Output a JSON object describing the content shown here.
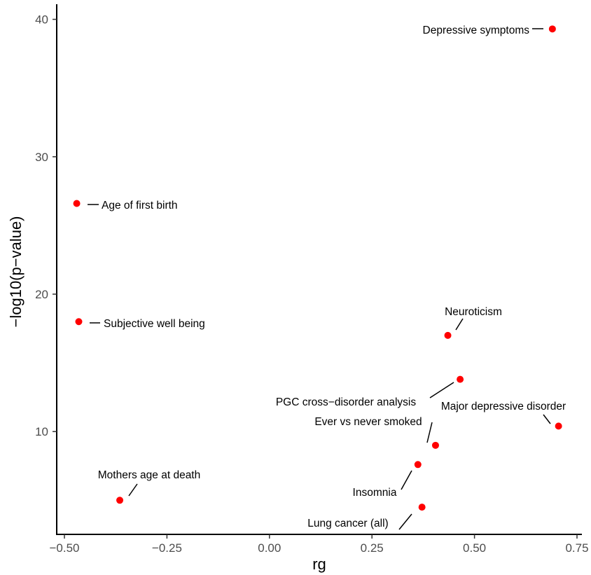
{
  "chart_data": {
    "type": "scatter",
    "title": "",
    "xlabel": "rg",
    "ylabel": "−log10(p−value)",
    "xlim": [
      -0.5,
      0.75
    ],
    "ylim": [
      0,
      40
    ],
    "xticks": [
      -0.5,
      -0.25,
      0.0,
      0.25,
      0.5,
      0.75
    ],
    "xtick_labels": [
      "−0.50",
      "−0.25",
      "0.00",
      "0.25",
      "0.50",
      "0.75"
    ],
    "yticks": [
      10,
      20,
      30,
      40
    ],
    "ytick_labels": [
      "10",
      "20",
      "30",
      "40"
    ],
    "grid": false,
    "point_color": "#ff0000",
    "points": [
      {
        "label": "Depressive symptoms",
        "x": 0.69,
        "y": 39.3
      },
      {
        "label": "Age of first birth",
        "x": -0.47,
        "y": 26.6
      },
      {
        "label": "Subjective well being",
        "x": -0.465,
        "y": 18.0
      },
      {
        "label": "Neuroticism",
        "x": 0.435,
        "y": 17.0
      },
      {
        "label": "PGC cross−disorder analysis",
        "x": 0.465,
        "y": 13.8
      },
      {
        "label": "Major depressive disorder",
        "x": 0.705,
        "y": 10.4
      },
      {
        "label": "Ever vs never smoked",
        "x": 0.405,
        "y": 9.0
      },
      {
        "label": "Insomnia",
        "x": 0.362,
        "y": 7.6
      },
      {
        "label": "Mothers age at death",
        "x": -0.365,
        "y": 5.0
      },
      {
        "label": "Lung cancer (all)",
        "x": 0.372,
        "y": 4.5
      }
    ]
  }
}
